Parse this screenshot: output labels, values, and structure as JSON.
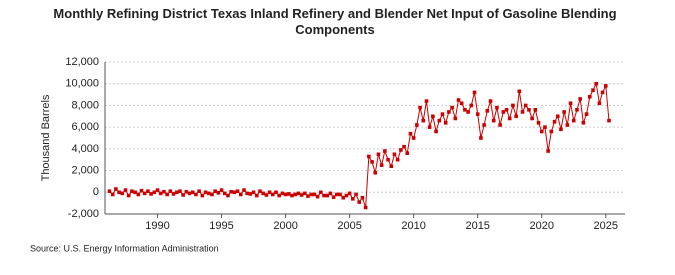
{
  "chart_data": {
    "type": "line",
    "title": "Monthly Refining District Texas Inland Refinery and Blender Net Input of Gasoline Blending Components",
    "y_label": "Thousand Barrels",
    "source": "Source: U.S. Energy Information Administration",
    "xlim": [
      1985.9,
      2026.5
    ],
    "xticks": [
      1990,
      1995,
      2000,
      2005,
      2010,
      2015,
      2020,
      2025
    ],
    "ylim": [
      -2000,
      12000
    ],
    "yticks": [
      {
        "value": -2000,
        "label": "-2,000"
      },
      0,
      {
        "value": 2000,
        "label": "2,000"
      },
      {
        "value": 4000,
        "label": "4,000"
      },
      {
        "value": 6000,
        "label": "6,000"
      },
      {
        "value": 8000,
        "label": "8,000"
      },
      {
        "value": 10000,
        "label": "10,000"
      },
      {
        "value": 12000,
        "label": "12,000"
      }
    ],
    "grid": true,
    "x": [
      1986.25,
      1986.5,
      1986.75,
      1987,
      1987.25,
      1987.5,
      1987.75,
      1988,
      1988.25,
      1988.5,
      1988.75,
      1989,
      1989.25,
      1989.5,
      1989.75,
      1990,
      1990.25,
      1990.5,
      1990.75,
      1991,
      1991.25,
      1991.5,
      1991.75,
      1992,
      1992.25,
      1992.5,
      1992.75,
      1993,
      1993.25,
      1993.5,
      1993.75,
      1994,
      1994.25,
      1994.5,
      1994.75,
      1995,
      1995.25,
      1995.5,
      1995.75,
      1996,
      1996.25,
      1996.5,
      1996.75,
      1997,
      1997.25,
      1997.5,
      1997.75,
      1998,
      1998.25,
      1998.5,
      1998.75,
      1999,
      1999.25,
      1999.5,
      1999.75,
      2000,
      2000.25,
      2000.5,
      2000.75,
      2001,
      2001.25,
      2001.5,
      2001.75,
      2002,
      2002.25,
      2002.5,
      2002.75,
      2003,
      2003.25,
      2003.5,
      2003.75,
      2004,
      2004.25,
      2004.5,
      2004.75,
      2005,
      2005.25,
      2005.5,
      2005.75,
      2006,
      2006.25,
      2006.5,
      2006.75,
      2007,
      2007.25,
      2007.5,
      2007.75,
      2008,
      2008.25,
      2008.5,
      2008.75,
      2009,
      2009.25,
      2009.5,
      2009.75,
      2010,
      2010.25,
      2010.5,
      2010.75,
      2011,
      2011.25,
      2011.5,
      2011.75,
      2012,
      2012.25,
      2012.5,
      2012.75,
      2013,
      2013.25,
      2013.5,
      2013.75,
      2014,
      2014.25,
      2014.5,
      2014.75,
      2015,
      2015.25,
      2015.5,
      2015.75,
      2016,
      2016.25,
      2016.5,
      2016.75,
      2017,
      2017.25,
      2017.5,
      2017.75,
      2018,
      2018.25,
      2018.5,
      2018.75,
      2019,
      2019.25,
      2019.5,
      2019.75,
      2020,
      2020.25,
      2020.5,
      2020.75,
      2021,
      2021.25,
      2021.5,
      2021.75,
      2022,
      2022.25,
      2022.5,
      2022.75,
      2023,
      2023.25,
      2023.5,
      2023.75,
      2024,
      2024.25,
      2024.5,
      2024.75,
      2025,
      2025.25
    ],
    "series": [
      {
        "name": "Net Input",
        "color": "#cc0000",
        "values": [
          100,
          -200,
          300,
          0,
          -100,
          200,
          -300,
          100,
          0,
          -200,
          150,
          -100,
          100,
          -150,
          0,
          200,
          -100,
          50,
          -200,
          100,
          -150,
          0,
          100,
          -250,
          50,
          -100,
          0,
          -200,
          100,
          -300,
          0,
          -100,
          -200,
          100,
          -50,
          200,
          -100,
          -300,
          50,
          0,
          100,
          -200,
          200,
          -100,
          -150,
          0,
          -300,
          100,
          -100,
          -250,
          0,
          -200,
          0,
          -300,
          -100,
          -200,
          -150,
          -300,
          -200,
          -100,
          -250,
          -100,
          -350,
          -200,
          -200,
          -400,
          0,
          -300,
          -300,
          -100,
          -450,
          -200,
          -200,
          -500,
          -300,
          -100,
          -600,
          -200,
          -900,
          -500,
          -1400,
          3300,
          2800,
          1800,
          3500,
          2500,
          3800,
          3000,
          2400,
          3500,
          3000,
          3900,
          4200,
          3600,
          5400,
          5000,
          6200,
          7800,
          6600,
          8400,
          6000,
          7000,
          5600,
          6600,
          7200,
          6400,
          7400,
          7800,
          6800,
          8500,
          8200,
          7600,
          7400,
          8000,
          9200,
          7200,
          5000,
          6200,
          7500,
          8400,
          6600,
          7800,
          6200,
          7400,
          7600,
          6800,
          8000,
          7000,
          9300,
          7400,
          8000,
          7600,
          6800,
          7600,
          6400,
          5600,
          6000,
          3800,
          5600,
          6500,
          7000,
          5800,
          7400,
          6200,
          8200,
          6600,
          7600,
          8600,
          6400,
          7200,
          8800,
          9400,
          10000,
          8200,
          9200,
          9800,
          6600
        ]
      }
    ]
  }
}
